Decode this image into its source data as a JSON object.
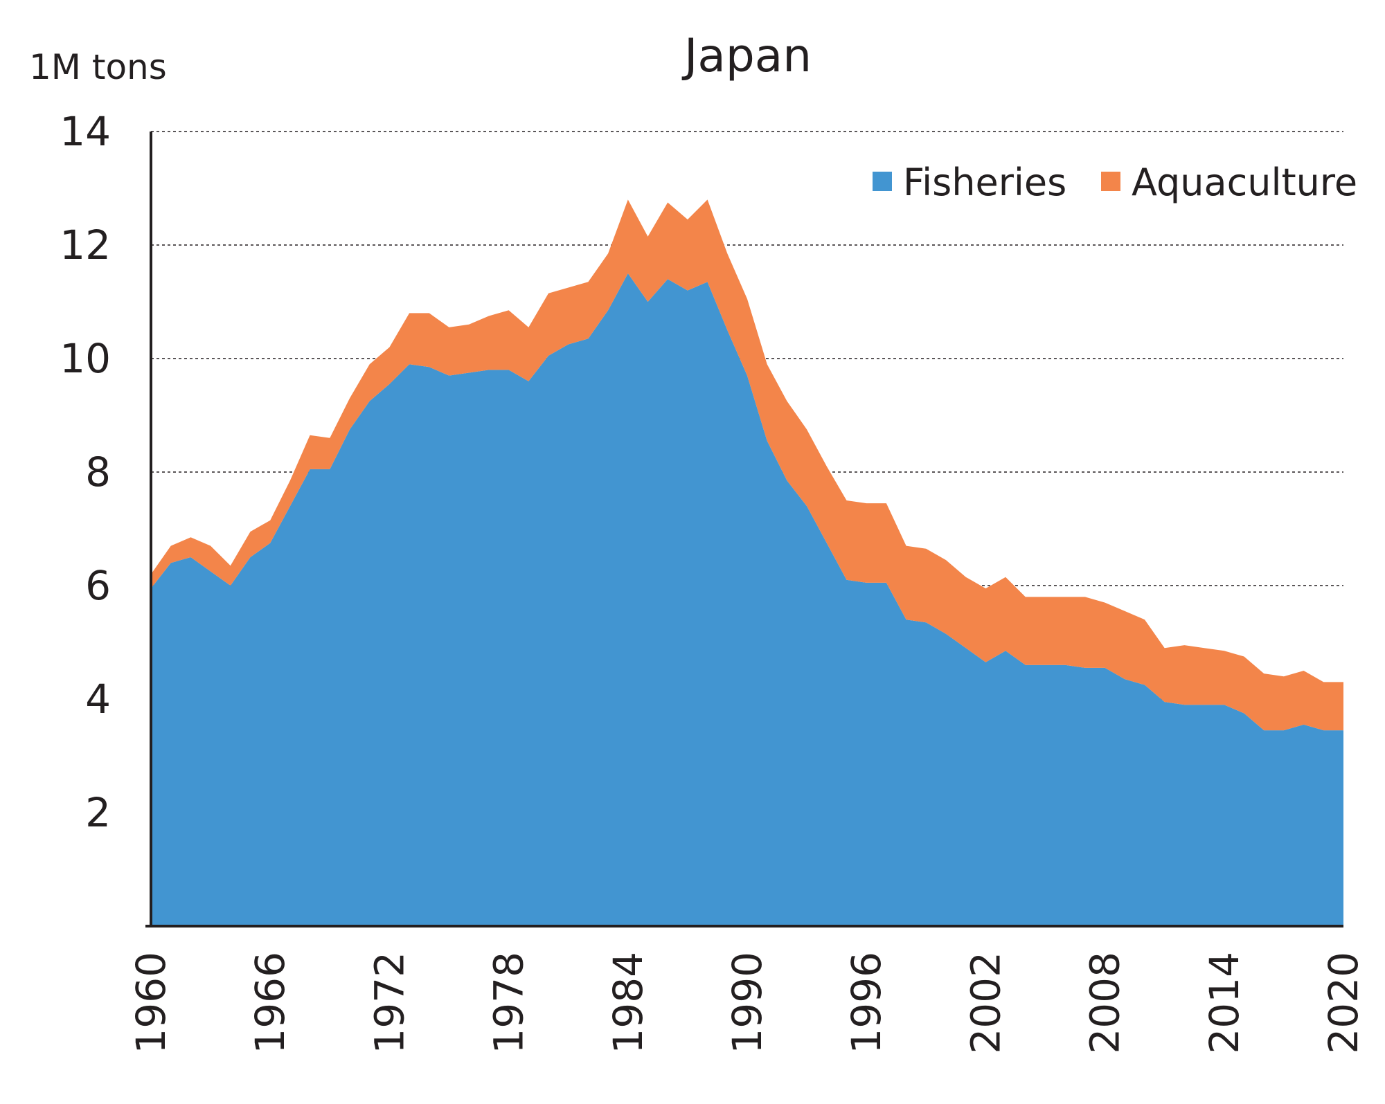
{
  "chart_data": {
    "type": "area",
    "stacked": true,
    "title": "Japan",
    "ylabel": "1M tons",
    "xlabel": "",
    "ylim": [
      0,
      14
    ],
    "xlim": [
      1960,
      2020
    ],
    "yticks": [
      "2",
      "4",
      "6",
      "8",
      "10",
      "12",
      "14"
    ],
    "xticks": [
      "1960",
      "1966",
      "1972",
      "1978",
      "1984",
      "1990",
      "1996",
      "2002",
      "2008",
      "2014",
      "2020"
    ],
    "grid": true,
    "legend": "top-right",
    "x": [
      1960,
      1961,
      1962,
      1963,
      1964,
      1965,
      1966,
      1967,
      1968,
      1969,
      1970,
      1971,
      1972,
      1973,
      1974,
      1975,
      1976,
      1977,
      1978,
      1979,
      1980,
      1981,
      1982,
      1983,
      1984,
      1985,
      1986,
      1987,
      1988,
      1989,
      1990,
      1991,
      1992,
      1993,
      1994,
      1995,
      1996,
      1997,
      1998,
      1999,
      2000,
      2001,
      2002,
      2003,
      2004,
      2005,
      2006,
      2007,
      2008,
      2009,
      2010,
      2011,
      2012,
      2013,
      2014,
      2015,
      2016,
      2017,
      2018,
      2019,
      2020
    ],
    "series": [
      {
        "name": "Fisheries",
        "color": "#4295d1",
        "values": [
          5.95,
          6.4,
          6.5,
          6.25,
          6.0,
          6.5,
          6.75,
          7.4,
          8.05,
          8.05,
          8.75,
          9.25,
          9.55,
          9.9,
          9.85,
          9.7,
          9.75,
          9.8,
          9.8,
          9.6,
          10.05,
          10.25,
          10.35,
          10.85,
          11.5,
          11.0,
          11.4,
          11.2,
          11.35,
          10.5,
          9.7,
          8.55,
          7.85,
          7.4,
          6.75,
          6.1,
          6.05,
          6.05,
          5.4,
          5.35,
          5.15,
          4.9,
          4.65,
          4.85,
          4.6,
          4.6,
          4.6,
          4.55,
          4.55,
          4.35,
          4.25,
          3.95,
          3.9,
          3.9,
          3.9,
          3.75,
          3.45,
          3.45,
          3.55,
          3.45,
          3.45
        ]
      },
      {
        "name": "Aquaculture",
        "color": "#f3854a",
        "values": [
          0.25,
          0.3,
          0.35,
          0.45,
          0.35,
          0.45,
          0.4,
          0.45,
          0.6,
          0.55,
          0.55,
          0.65,
          0.65,
          0.9,
          0.95,
          0.85,
          0.85,
          0.95,
          1.05,
          0.95,
          1.1,
          1.0,
          1.0,
          1.0,
          1.3,
          1.15,
          1.35,
          1.25,
          1.45,
          1.35,
          1.35,
          1.35,
          1.4,
          1.35,
          1.35,
          1.4,
          1.4,
          1.4,
          1.3,
          1.3,
          1.3,
          1.25,
          1.3,
          1.3,
          1.2,
          1.2,
          1.2,
          1.25,
          1.15,
          1.2,
          1.15,
          0.95,
          1.05,
          1.0,
          0.95,
          1.0,
          1.0,
          0.95,
          0.95,
          0.85,
          0.85
        ]
      }
    ]
  }
}
